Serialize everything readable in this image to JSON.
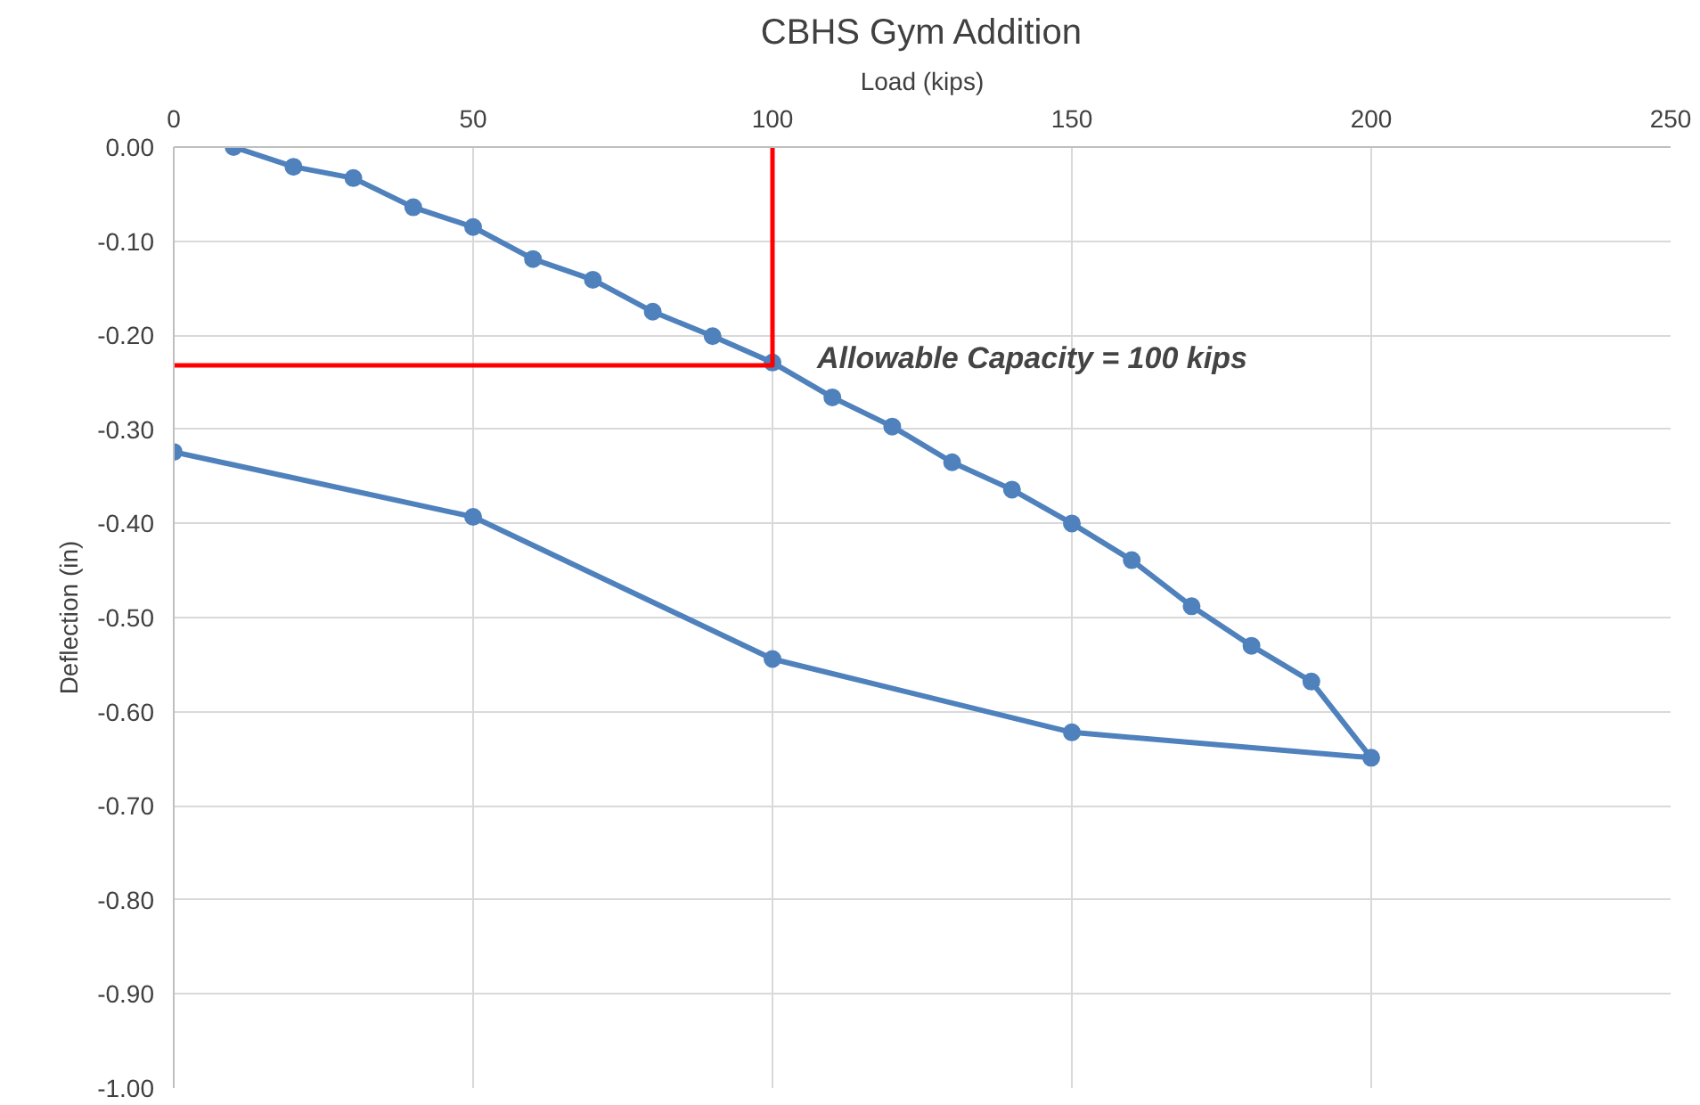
{
  "chart_data": {
    "type": "line",
    "title": "CBHS Gym Addition",
    "xlabel": "Load (kips)",
    "ylabel": "Deflection (in)",
    "xlim": [
      0,
      250
    ],
    "xticks": [
      0,
      50,
      100,
      150,
      200,
      250
    ],
    "ylim": [
      -1,
      0
    ],
    "yticks": [
      {
        "value": 0,
        "label": "0.00"
      },
      {
        "value": -0.1,
        "label": "-0.10"
      },
      {
        "value": -0.2,
        "label": "-0.20"
      },
      {
        "value": -0.3,
        "label": "-0.30"
      },
      {
        "value": -0.4,
        "label": "-0.40"
      },
      {
        "value": -0.5,
        "label": "-0.50"
      },
      {
        "value": -0.6,
        "label": "-0.60"
      },
      {
        "value": -0.7,
        "label": "-0.70"
      },
      {
        "value": -0.8,
        "label": "-0.80"
      },
      {
        "value": -0.9,
        "label": "-0.90"
      },
      {
        "value": -1,
        "label": "-1.00"
      }
    ],
    "grid": true,
    "series": [
      {
        "color": "#4f81bd",
        "marker": "circle",
        "x": [
          10,
          20,
          30,
          40,
          50,
          60,
          70,
          80,
          90,
          100,
          110,
          120,
          130,
          140,
          150,
          160,
          170,
          180,
          190,
          200,
          150,
          100,
          50,
          0
        ],
        "values": [
          0,
          -0.021,
          -0.033,
          -0.064,
          -0.085,
          -0.119,
          -0.141,
          -0.175,
          -0.201,
          -0.229,
          -0.266,
          -0.297,
          -0.335,
          -0.364,
          -0.4,
          -0.439,
          -0.488,
          -0.53,
          -0.568,
          -0.649,
          -0.622,
          -0.544,
          -0.393,
          -0.324
        ]
      },
      {
        "color": "#ff0000",
        "marker": "none",
        "x": [
          0,
          100,
          100
        ],
        "values": [
          -0.232,
          -0.232,
          0
        ]
      }
    ],
    "annotations": [
      "Allowable Capacity = 100 kips"
    ]
  }
}
